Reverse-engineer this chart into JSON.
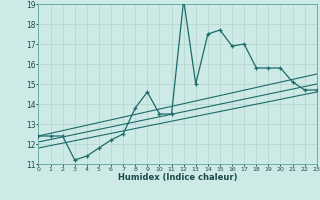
{
  "xlabel": "Humidex (Indice chaleur)",
  "xlim": [
    0,
    23
  ],
  "ylim": [
    11,
    19
  ],
  "yticks": [
    11,
    12,
    13,
    14,
    15,
    16,
    17,
    18,
    19
  ],
  "xticks": [
    0,
    1,
    2,
    3,
    4,
    5,
    6,
    7,
    8,
    9,
    10,
    11,
    12,
    13,
    14,
    15,
    16,
    17,
    18,
    19,
    20,
    21,
    22,
    23
  ],
  "bg_color": "#ceeae6",
  "grid_color": "#b8d8d4",
  "line_color": "#1a6b6b",
  "series1_x": [
    0,
    1,
    2,
    3,
    4,
    5,
    6,
    7,
    8,
    9,
    10,
    11,
    12,
    13,
    14,
    15,
    16,
    17,
    18,
    19,
    20,
    21,
    22,
    23
  ],
  "series1_y": [
    12.4,
    12.4,
    12.4,
    11.2,
    11.4,
    11.8,
    12.2,
    12.5,
    13.8,
    14.6,
    13.5,
    13.5,
    19.2,
    15.0,
    17.5,
    17.7,
    16.9,
    17.0,
    15.8,
    15.8,
    15.8,
    15.1,
    14.7,
    14.7
  ],
  "series2_x": [
    0,
    23
  ],
  "series2_y": [
    11.8,
    14.6
  ],
  "series3_x": [
    0,
    23
  ],
  "series3_y": [
    12.1,
    15.0
  ],
  "series4_x": [
    0,
    23
  ],
  "series4_y": [
    12.4,
    15.5
  ]
}
